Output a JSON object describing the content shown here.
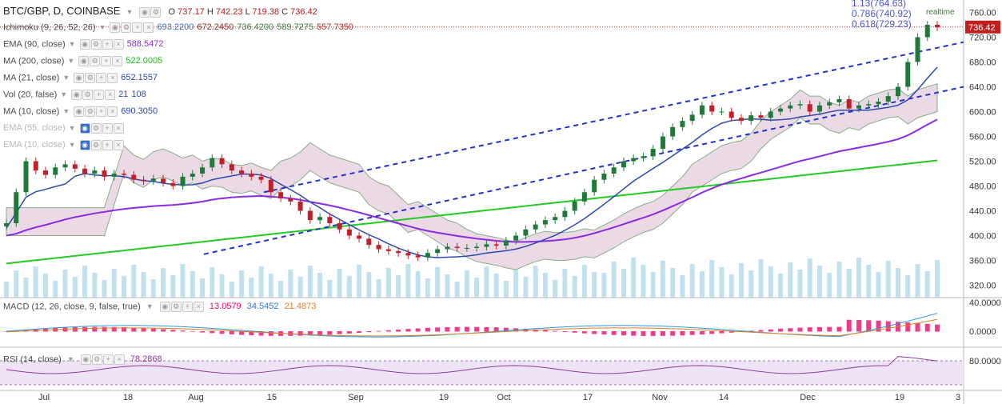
{
  "header": {
    "symbol": "BTC/GBP, D, COINBASE",
    "ohlc": [
      {
        "k": "O",
        "v": "737.17"
      },
      {
        "k": "H",
        "v": "742.23"
      },
      {
        "k": "L",
        "v": "719.38"
      },
      {
        "k": "C",
        "v": "736.42"
      }
    ],
    "realtime_label": "realtime"
  },
  "indicators": [
    {
      "label": "Ichimoku (9, 26, 52, 26)",
      "values": [
        {
          "v": "693.2200",
          "c": "#2f6fbf"
        },
        {
          "v": "672.2450",
          "c": "#8a2a2a"
        },
        {
          "v": "736.4200",
          "c": "#3a7a3a"
        },
        {
          "v": "589.7275",
          "c": "#3a7a3a"
        },
        {
          "v": "557.7350",
          "c": "#b03030"
        }
      ],
      "muted": false
    },
    {
      "label": "EMA (90, close)",
      "values": [
        {
          "v": "588.5472",
          "c": "#8a2be2"
        }
      ],
      "muted": false
    },
    {
      "label": "MA (200, close)",
      "values": [
        {
          "v": "522.0005",
          "c": "#22bb22"
        }
      ],
      "muted": false
    },
    {
      "label": "MA (21, close)",
      "values": [
        {
          "v": "652.1557",
          "c": "#2b4ab0"
        }
      ],
      "muted": false
    },
    {
      "label": "Vol (20, false)",
      "values": [
        {
          "v": "21",
          "c": "#2b4ab0"
        },
        {
          "v": "108",
          "c": "#2b4ab0"
        }
      ],
      "muted": false
    },
    {
      "label": "MA (10, close)",
      "values": [
        {
          "v": "690.3050",
          "c": "#2b4ab0"
        }
      ],
      "muted": false
    },
    {
      "label": "EMA (55, close)",
      "values": [],
      "muted": true
    },
    {
      "label": "EMA (10, close)",
      "values": [],
      "muted": true
    }
  ],
  "macd": {
    "label": "MACD (12, 26, close, 9, false, true)",
    "values": [
      {
        "v": "13.0579",
        "c": "#e01070"
      },
      {
        "v": "34.5452",
        "c": "#2b7ad0"
      },
      {
        "v": "21.4873",
        "c": "#e08020"
      }
    ]
  },
  "rsi": {
    "label": "RSI (14, close)",
    "values": [
      {
        "v": "78.2868",
        "c": "#8a3aa0"
      }
    ]
  },
  "price_axis": {
    "ticks": [
      "760.00",
      "720.00",
      "680.00",
      "640.00",
      "600.00",
      "560.00",
      "520.00",
      "480.00",
      "440.00",
      "400.00",
      "360.00",
      "320.00"
    ],
    "current": "736.42"
  },
  "macd_axis": {
    "ticks": [
      "40.0000",
      "0.0000"
    ]
  },
  "rsi_axis": {
    "ticks": [
      "80.0000"
    ]
  },
  "time_axis": {
    "ticks": [
      "Jul",
      "18",
      "Aug",
      "15",
      "Sep",
      "19",
      "Oct",
      "17",
      "Nov",
      "14",
      "Dec",
      "19",
      "3"
    ]
  },
  "fib_labels": [
    "1.13(764.63)",
    "0.786(740.92)",
    "0.618(729.23)"
  ],
  "colors": {
    "up": "#1f7a3a",
    "down": "#c0202a",
    "cloud": "#e8d0e0",
    "ema90": "#8a2be2",
    "ma200": "#22cc22",
    "ma21": "#2b4ab0",
    "trend": "#2233cc",
    "vol": "#a8d4e8"
  },
  "chart_data": {
    "type": "candlestick",
    "title": "BTC/GBP, D, COINBASE",
    "ylim": [
      300,
      780
    ],
    "x_range": [
      "Jul",
      "3"
    ],
    "close": [
      420,
      470,
      520,
      505,
      498,
      510,
      515,
      508,
      500,
      505,
      495,
      500,
      498,
      490,
      488,
      492,
      485,
      480,
      495,
      500,
      510,
      525,
      515,
      505,
      500,
      495,
      490,
      470,
      460,
      455,
      440,
      425,
      430,
      420,
      410,
      400,
      395,
      385,
      378,
      375,
      372,
      368,
      365,
      372,
      378,
      382,
      380,
      380,
      382,
      386,
      384,
      392,
      400,
      410,
      418,
      425,
      430,
      440,
      455,
      470,
      490,
      500,
      510,
      520,
      525,
      528,
      540,
      560,
      575,
      585,
      595,
      610,
      600,
      600,
      590,
      585,
      594,
      590,
      600,
      605,
      610,
      612,
      600,
      610,
      615,
      620,
      605,
      610,
      612,
      616,
      625,
      640,
      680,
      720,
      740,
      736
    ]
  }
}
